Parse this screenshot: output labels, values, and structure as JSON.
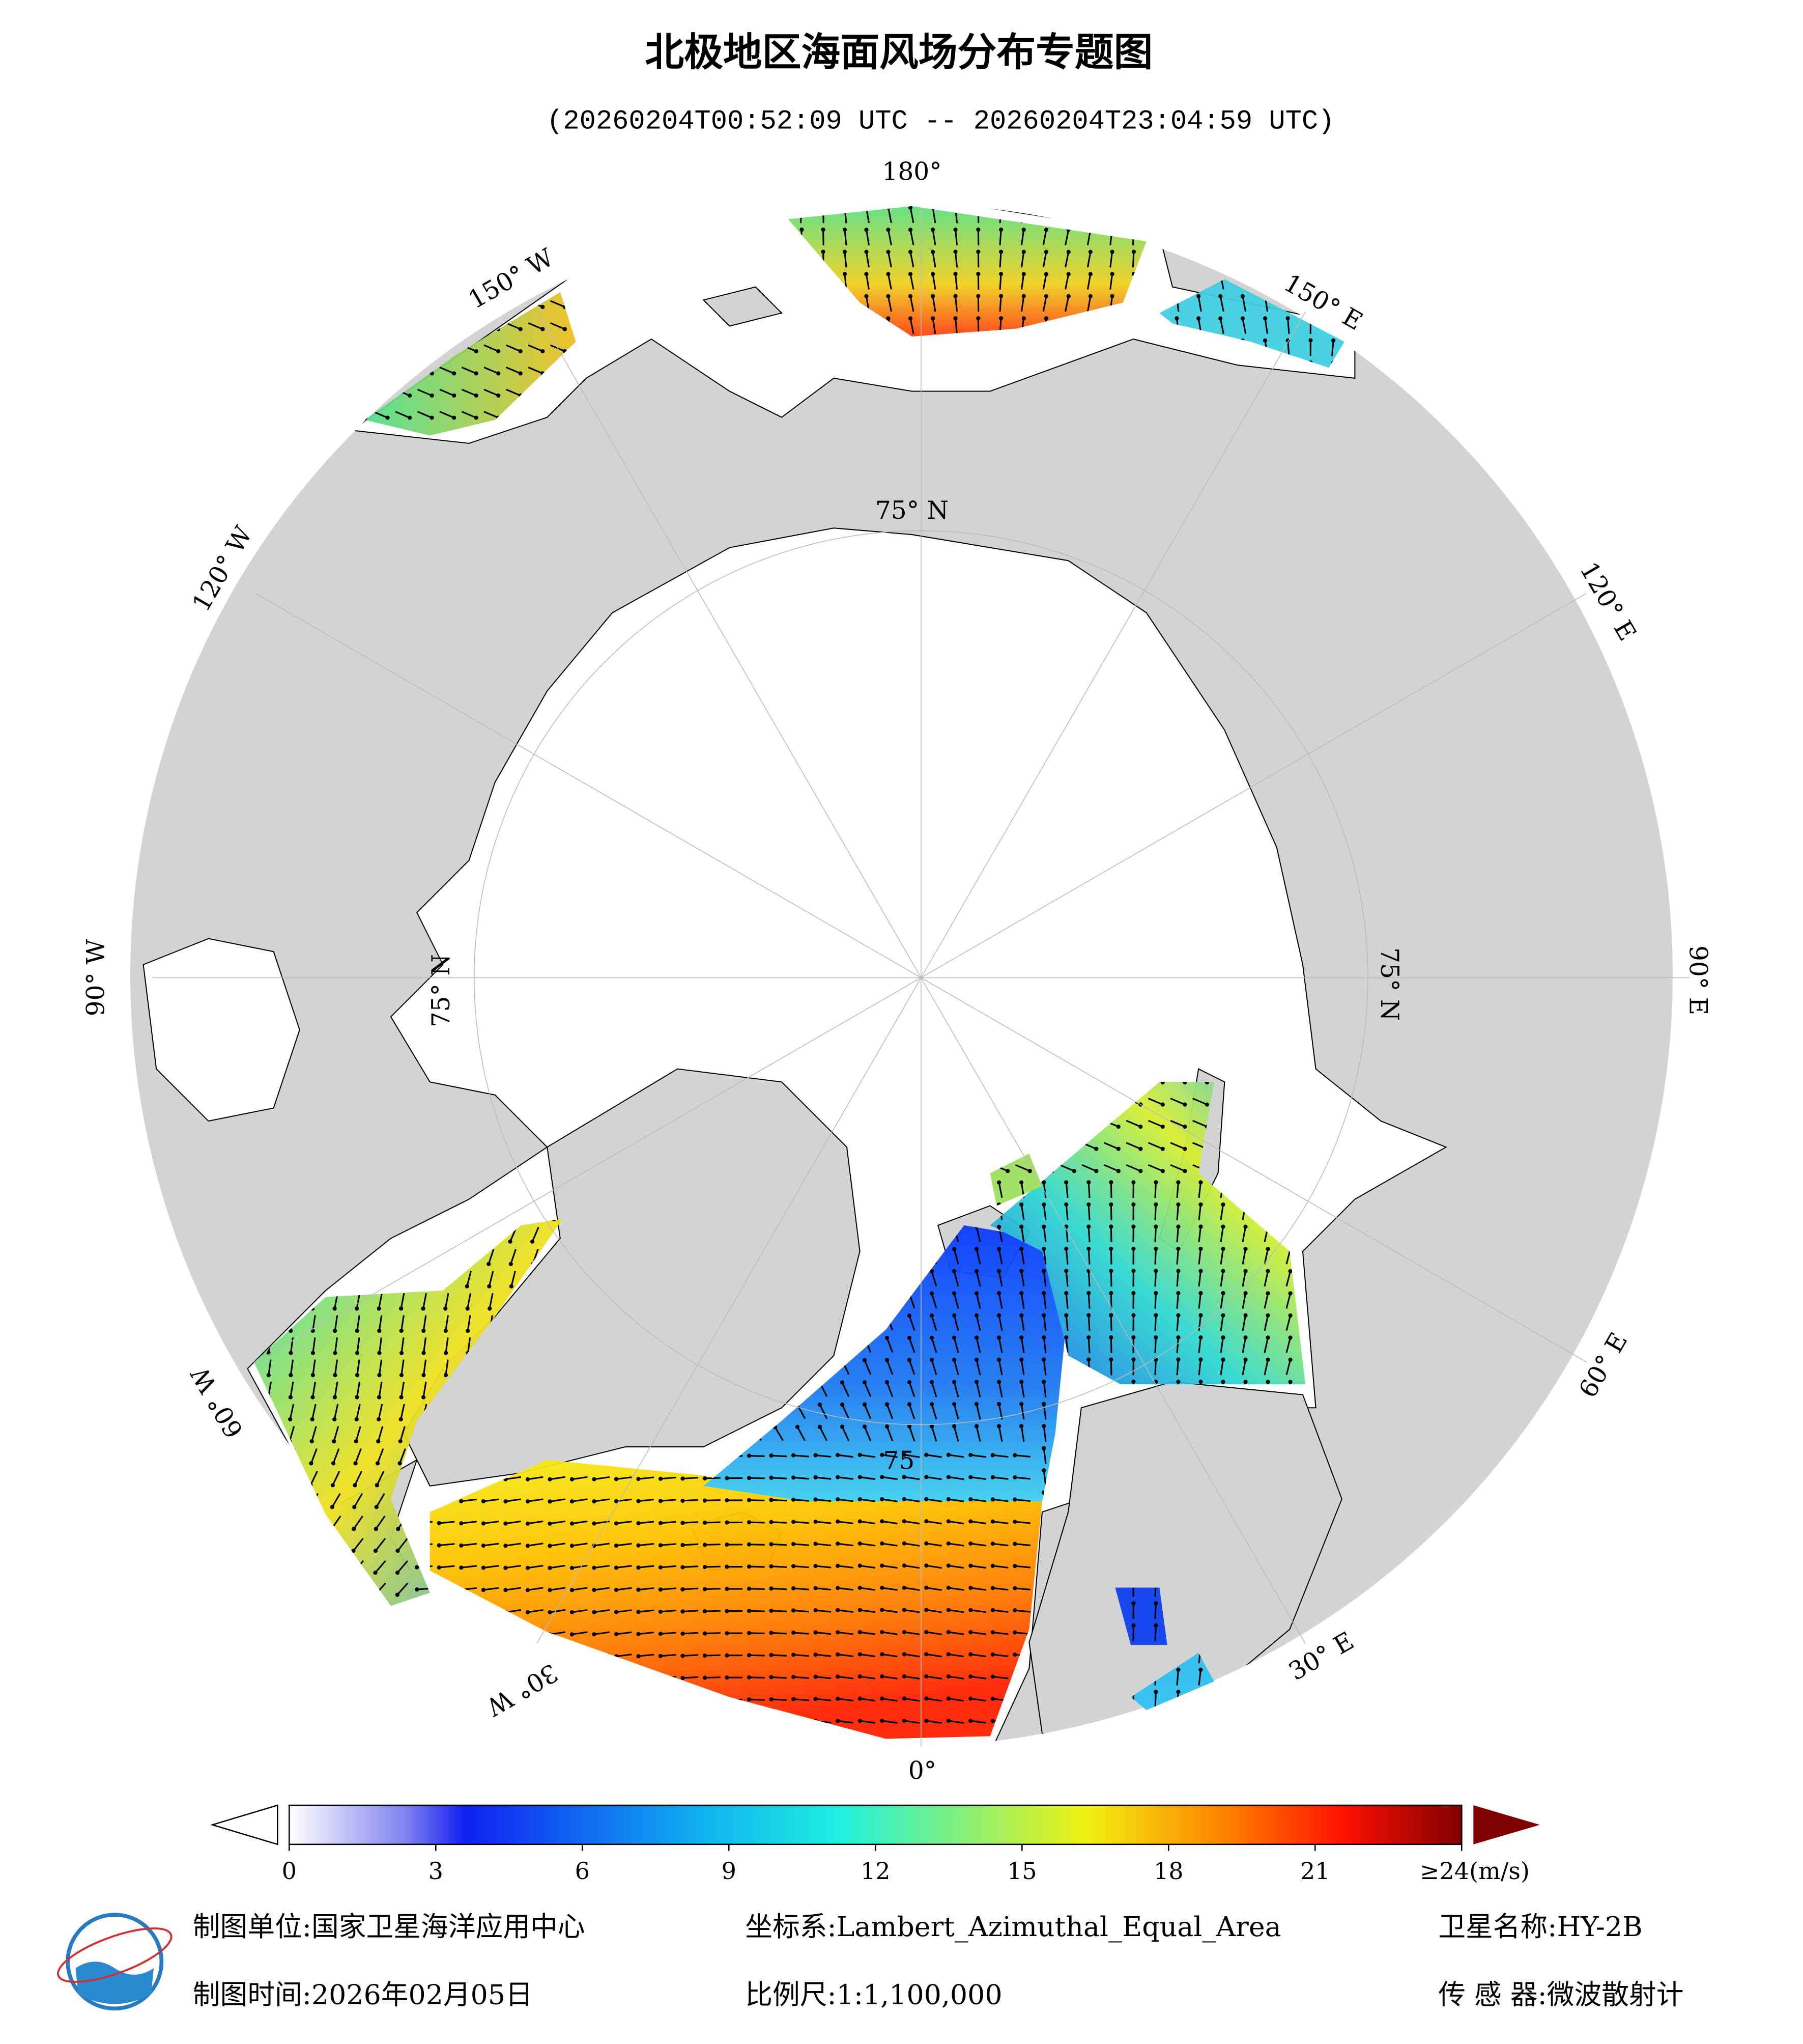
{
  "title": "北极地区海面风场分布专题图",
  "subtitle": "(20260204T00:52:09 UTC -- 20260204T23:04:59 UTC)",
  "map": {
    "lon_labels": [
      "180°",
      "150° W",
      "120° W",
      "90° W",
      "60° W",
      "30° W",
      "0°",
      "30° E",
      "60° E",
      "90° E",
      "120° E",
      "150° E"
    ],
    "lat_labels": [
      "75° N",
      "75° N",
      "75° N",
      "75"
    ]
  },
  "colorbar": {
    "lim": [
      0,
      24
    ],
    "ticks": [
      0,
      3,
      6,
      9,
      12,
      15,
      18,
      21,
      {
        "value": 24,
        "label": "≥24(m/s)"
      }
    ]
  },
  "footer": [
    {
      "label": "制图单位:",
      "value": "国家卫星海洋应用中心"
    },
    {
      "label": "坐标系:",
      "value": "Lambert_Azimuthal_Equal_Area"
    },
    {
      "label": "卫星名称:",
      "value": "HY-2B"
    },
    {
      "label": "制图时间:",
      "value": "2026年02月05日"
    },
    {
      "label": "比例尺:",
      "value": "1:1,100,000"
    },
    {
      "label": "传 感 器:",
      "value": "微波散射计"
    }
  ]
}
